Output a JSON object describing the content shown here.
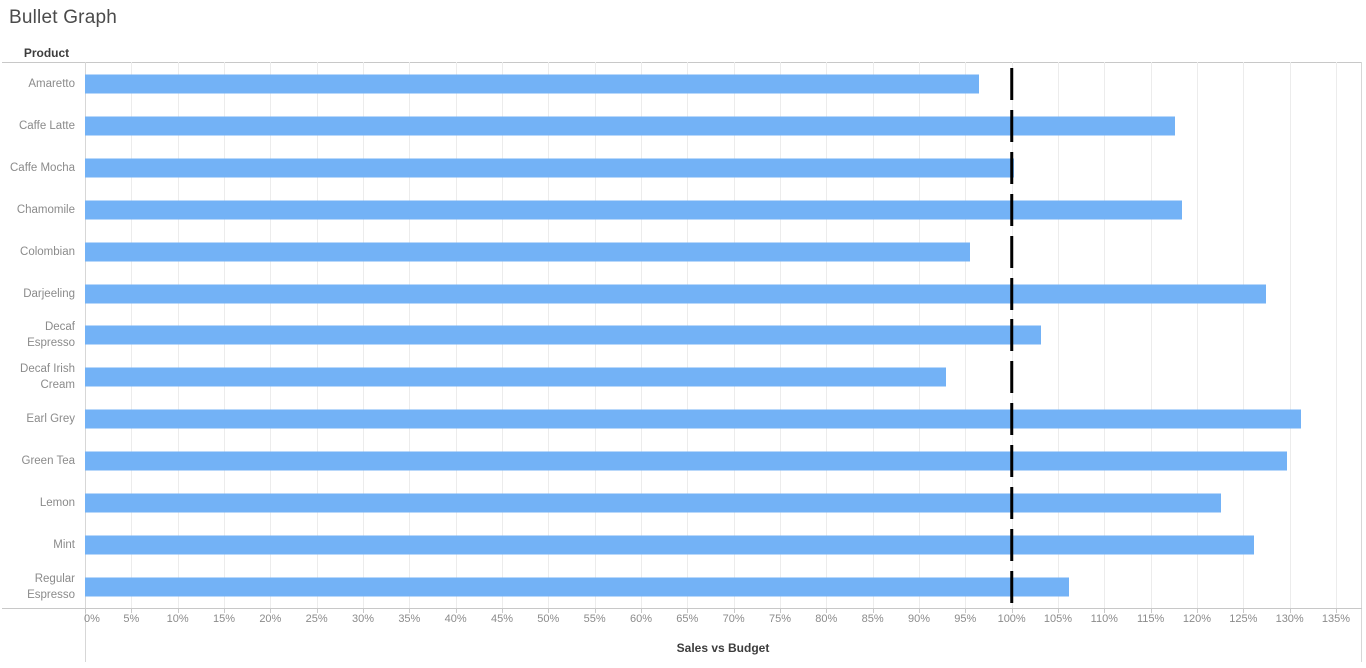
{
  "chart_data": {
    "type": "bar",
    "title": "Bullet Graph",
    "row_header": "Product",
    "xlabel": "Sales vs Budget",
    "unit": "%",
    "orientation": "horizontal",
    "categories": [
      "Amaretto",
      "Caffe Latte",
      "Caffe Mocha",
      "Chamomile",
      "Colombian",
      "Darjeeling",
      "Decaf Espresso",
      "Decaf Irish Cream",
      "Earl Grey",
      "Green Tea",
      "Lemon",
      "Mint",
      "Regular Espresso"
    ],
    "values": [
      96.5,
      117.6,
      100.2,
      118.4,
      95.5,
      127.5,
      103.2,
      92.9,
      131.2,
      129.7,
      122.6,
      126.1,
      106.2
    ],
    "reference_line_value": 100,
    "xlim": [
      0,
      137.7
    ],
    "tick_step": 5,
    "tick_labels": [
      "0%",
      "5%",
      "10%",
      "15%",
      "20%",
      "25%",
      "30%",
      "35%",
      "40%",
      "45%",
      "50%",
      "55%",
      "60%",
      "65%",
      "70%",
      "75%",
      "80%",
      "85%",
      "90%",
      "95%",
      "100%",
      "105%",
      "110%",
      "115%",
      "120%",
      "125%",
      "130%",
      "135%"
    ],
    "grid": "vertical-only",
    "legend": "none",
    "colors": {
      "bar": "#73b2f6",
      "reference_line": "#000000",
      "gridline": "#ececec",
      "axis_rule": "#c8c8c8",
      "tick_text": "#8b8b8b",
      "label_text": "#3d3d3d"
    }
  }
}
